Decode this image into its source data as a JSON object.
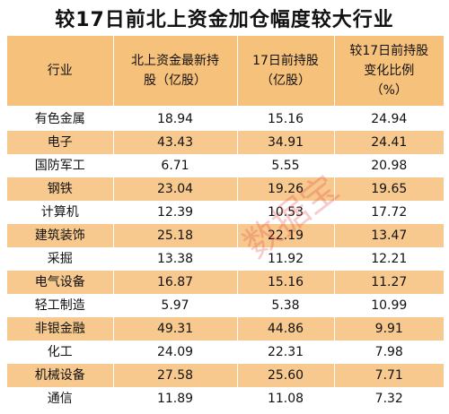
{
  "title": "较17日前北上资金加仓幅度较大行业",
  "table": {
    "headers": [
      [
        "行业"
      ],
      [
        "北上资金最新持",
        "股（亿股）"
      ],
      [
        "17日前持股",
        "（亿股）"
      ],
      [
        "较17日前持股",
        "变化比例",
        "（%）"
      ]
    ],
    "rows": [
      [
        "有色金属",
        "18.94",
        "15.16",
        "24.94"
      ],
      [
        "电子",
        "43.43",
        "34.91",
        "24.41"
      ],
      [
        "国防军工",
        "6.71",
        "5.55",
        "20.98"
      ],
      [
        "钢铁",
        "23.04",
        "19.26",
        "19.65"
      ],
      [
        "计算机",
        "12.39",
        "10.53",
        "17.72"
      ],
      [
        "建筑装饰",
        "25.18",
        "22.19",
        "13.47"
      ],
      [
        "采掘",
        "13.38",
        "11.92",
        "12.21"
      ],
      [
        "电气设备",
        "16.87",
        "15.16",
        "11.27"
      ],
      [
        "轻工制造",
        "5.97",
        "5.38",
        "10.99"
      ],
      [
        "非银金融",
        "49.31",
        "44.86",
        "9.91"
      ],
      [
        "化工",
        "24.09",
        "22.31",
        "7.98"
      ],
      [
        "机械设备",
        "27.58",
        "25.60",
        "7.71"
      ],
      [
        "通信",
        "11.89",
        "11.08",
        "7.32"
      ]
    ]
  },
  "watermark": "数据宝",
  "colors": {
    "header_bg": "#f6c17a",
    "stripe_bg": "#f7c98e",
    "watermark": "#e64646"
  }
}
